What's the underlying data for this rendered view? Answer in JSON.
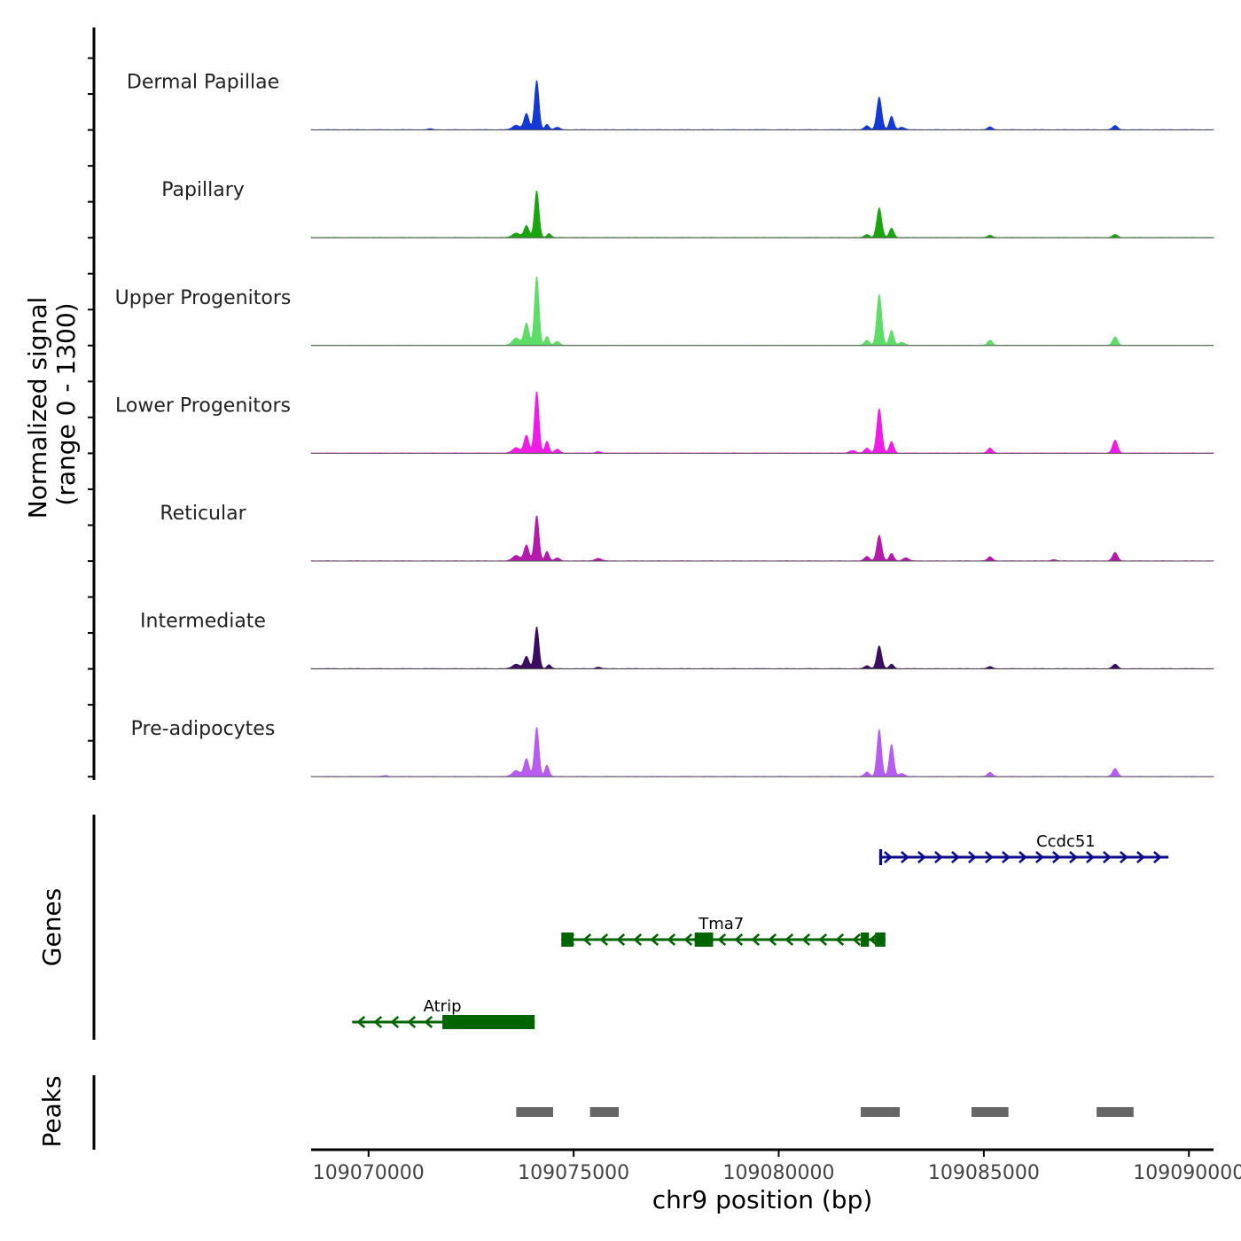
{
  "chart_data": {
    "type": "area",
    "title": "",
    "ylabel_line1": "Normalized signal",
    "ylabel_line2": "(range 0 - 1300)",
    "y_range": [
      0,
      1300
    ],
    "xlabel": "chr9 position (bp)",
    "xlim": [
      109068600,
      109090600
    ],
    "x_ticks": [
      109070000,
      109075000,
      109080000,
      109085000,
      109090000
    ],
    "x_tick_labels": [
      "109070000",
      "109075000",
      "109080000",
      "109085000",
      "109090000"
    ],
    "tracks": [
      {
        "name": "Dermal Papillae",
        "color": "#1238d6",
        "peaks": [
          {
            "x": 109074100,
            "y": 1000,
            "w": 55
          },
          {
            "x": 109073850,
            "y": 330,
            "w": 60
          },
          {
            "x": 109073600,
            "y": 90,
            "w": 90
          },
          {
            "x": 109074350,
            "y": 110,
            "w": 50
          },
          {
            "x": 109074600,
            "y": 50,
            "w": 60
          },
          {
            "x": 109082450,
            "y": 660,
            "w": 60
          },
          {
            "x": 109082750,
            "y": 270,
            "w": 55
          },
          {
            "x": 109082150,
            "y": 80,
            "w": 60
          },
          {
            "x": 109083000,
            "y": 50,
            "w": 70
          },
          {
            "x": 109085150,
            "y": 55,
            "w": 60
          },
          {
            "x": 109088200,
            "y": 85,
            "w": 60
          },
          {
            "x": 109071500,
            "y": 20,
            "w": 50
          }
        ]
      },
      {
        "name": "Papillary",
        "color": "#1aa50f",
        "peaks": [
          {
            "x": 109074100,
            "y": 950,
            "w": 55
          },
          {
            "x": 109073850,
            "y": 240,
            "w": 60
          },
          {
            "x": 109073600,
            "y": 90,
            "w": 90
          },
          {
            "x": 109074400,
            "y": 80,
            "w": 50
          },
          {
            "x": 109082450,
            "y": 600,
            "w": 60
          },
          {
            "x": 109082750,
            "y": 190,
            "w": 55
          },
          {
            "x": 109082150,
            "y": 60,
            "w": 60
          },
          {
            "x": 109085150,
            "y": 45,
            "w": 60
          },
          {
            "x": 109088200,
            "y": 60,
            "w": 60
          }
        ]
      },
      {
        "name": "Upper Progenitors",
        "color": "#5ddc68",
        "peaks": [
          {
            "x": 109074100,
            "y": 1400,
            "w": 55
          },
          {
            "x": 109073850,
            "y": 450,
            "w": 60
          },
          {
            "x": 109073600,
            "y": 150,
            "w": 90
          },
          {
            "x": 109074350,
            "y": 180,
            "w": 50
          },
          {
            "x": 109074600,
            "y": 80,
            "w": 60
          },
          {
            "x": 109082450,
            "y": 1030,
            "w": 60
          },
          {
            "x": 109082750,
            "y": 300,
            "w": 55
          },
          {
            "x": 109082150,
            "y": 100,
            "w": 60
          },
          {
            "x": 109083000,
            "y": 60,
            "w": 70
          },
          {
            "x": 109085150,
            "y": 100,
            "w": 60
          },
          {
            "x": 109088200,
            "y": 170,
            "w": 60
          }
        ]
      },
      {
        "name": "Lower Progenitors",
        "color": "#f01ce6",
        "peaks": [
          {
            "x": 109074100,
            "y": 1250,
            "w": 55
          },
          {
            "x": 109073850,
            "y": 360,
            "w": 60
          },
          {
            "x": 109073600,
            "y": 110,
            "w": 90
          },
          {
            "x": 109074350,
            "y": 240,
            "w": 50
          },
          {
            "x": 109074600,
            "y": 80,
            "w": 60
          },
          {
            "x": 109082450,
            "y": 900,
            "w": 60
          },
          {
            "x": 109082750,
            "y": 230,
            "w": 55
          },
          {
            "x": 109082150,
            "y": 100,
            "w": 60
          },
          {
            "x": 109081800,
            "y": 50,
            "w": 80
          },
          {
            "x": 109085150,
            "y": 100,
            "w": 60
          },
          {
            "x": 109088200,
            "y": 260,
            "w": 60
          },
          {
            "x": 109075600,
            "y": 30,
            "w": 60
          }
        ]
      },
      {
        "name": "Reticular",
        "color": "#b31aaa",
        "peaks": [
          {
            "x": 109074100,
            "y": 920,
            "w": 55
          },
          {
            "x": 109073850,
            "y": 320,
            "w": 60
          },
          {
            "x": 109073600,
            "y": 110,
            "w": 90
          },
          {
            "x": 109074350,
            "y": 190,
            "w": 50
          },
          {
            "x": 109074600,
            "y": 60,
            "w": 60
          },
          {
            "x": 109082450,
            "y": 520,
            "w": 60
          },
          {
            "x": 109082750,
            "y": 150,
            "w": 55
          },
          {
            "x": 109082150,
            "y": 90,
            "w": 60
          },
          {
            "x": 109083100,
            "y": 60,
            "w": 70
          },
          {
            "x": 109085150,
            "y": 80,
            "w": 60
          },
          {
            "x": 109088200,
            "y": 170,
            "w": 60
          },
          {
            "x": 109075600,
            "y": 50,
            "w": 80
          },
          {
            "x": 109086700,
            "y": 25,
            "w": 60
          }
        ]
      },
      {
        "name": "Intermediate",
        "color": "#3a0d5e",
        "peaks": [
          {
            "x": 109074100,
            "y": 850,
            "w": 55
          },
          {
            "x": 109073850,
            "y": 250,
            "w": 60
          },
          {
            "x": 109073600,
            "y": 90,
            "w": 90
          },
          {
            "x": 109074400,
            "y": 80,
            "w": 50
          },
          {
            "x": 109082450,
            "y": 460,
            "w": 60
          },
          {
            "x": 109082750,
            "y": 90,
            "w": 55
          },
          {
            "x": 109082150,
            "y": 60,
            "w": 60
          },
          {
            "x": 109085150,
            "y": 40,
            "w": 60
          },
          {
            "x": 109088200,
            "y": 90,
            "w": 60
          },
          {
            "x": 109075600,
            "y": 30,
            "w": 60
          }
        ]
      },
      {
        "name": "Pre-adipocytes",
        "color": "#b75cf0",
        "peaks": [
          {
            "x": 109074100,
            "y": 1000,
            "w": 55
          },
          {
            "x": 109073850,
            "y": 360,
            "w": 60
          },
          {
            "x": 109073600,
            "y": 120,
            "w": 90
          },
          {
            "x": 109074350,
            "y": 230,
            "w": 50
          },
          {
            "x": 109082450,
            "y": 950,
            "w": 55
          },
          {
            "x": 109082750,
            "y": 650,
            "w": 55
          },
          {
            "x": 109082150,
            "y": 90,
            "w": 60
          },
          {
            "x": 109083000,
            "y": 60,
            "w": 70
          },
          {
            "x": 109085150,
            "y": 80,
            "w": 60
          },
          {
            "x": 109088200,
            "y": 160,
            "w": 60
          },
          {
            "x": 109070400,
            "y": 20,
            "w": 60
          }
        ]
      }
    ],
    "genes_label": "Genes",
    "genes": [
      {
        "name": "Ccdc51",
        "strand": "+",
        "start": 109082450,
        "end": 109089500,
        "color": "#0b0b8c",
        "row": 1,
        "exons": [
          {
            "start": 109082450,
            "end": 109082520
          }
        ]
      },
      {
        "name": "Tma7",
        "strand": "-",
        "start": 109074700,
        "end": 109082600,
        "color": "#006400",
        "row": 2,
        "exons": [
          {
            "start": 109074700,
            "end": 109075000
          },
          {
            "start": 109077950,
            "end": 109078400
          },
          {
            "start": 109082000,
            "end": 109082200
          },
          {
            "start": 109082350,
            "end": 109082600
          }
        ]
      },
      {
        "name": "Atrip",
        "strand": "-",
        "start": 109069600,
        "end": 109074050,
        "color": "#006400",
        "row": 3,
        "exons": [
          {
            "start": 109071800,
            "end": 109074050
          }
        ]
      }
    ],
    "peaks_label": "Peaks",
    "peak_regions": [
      {
        "start": 109073600,
        "end": 109074500
      },
      {
        "start": 109075400,
        "end": 109076100
      },
      {
        "start": 109082000,
        "end": 109082950
      },
      {
        "start": 109084700,
        "end": 109085600
      },
      {
        "start": 109087750,
        "end": 109088650
      }
    ],
    "peak_color": "#666666"
  }
}
